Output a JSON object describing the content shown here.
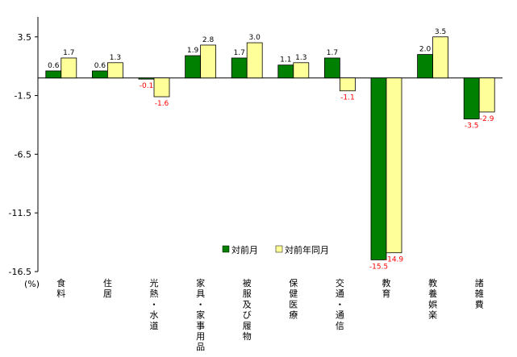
{
  "chart_data": {
    "type": "bar",
    "unit_label": "(%)",
    "categories": [
      "食料",
      "住居",
      "光熱・水道",
      "家具・家事用品",
      "被服及び履物",
      "保健医療",
      "交通・通信",
      "教育",
      "教養娯楽",
      "諸雑費"
    ],
    "series": [
      {
        "name": "対前月",
        "values": [
          0.6,
          0.6,
          -0.1,
          1.9,
          1.7,
          1.1,
          1.7,
          -15.5,
          2.0,
          -3.5
        ]
      },
      {
        "name": "対前年同月",
        "values": [
          1.7,
          1.3,
          -1.6,
          2.8,
          3.0,
          1.3,
          -1.1,
          -14.9,
          3.5,
          -2.9
        ]
      }
    ],
    "value_labels": [
      [
        "0.6",
        "0.6",
        "-0.1",
        "1.9",
        "1.7",
        "1.1",
        "1.7",
        "-15.5",
        "2.0",
        "-3.5"
      ],
      [
        "1.7",
        "1.3",
        "-1.6",
        "2.8",
        "3.0",
        "1.3",
        "-1.1",
        "-14.9",
        "3.5",
        "-2.9"
      ]
    ],
    "yticks": [
      "3.5",
      "-1.5",
      "-6.5",
      "-11.5",
      "-16.5"
    ],
    "ylim": [
      -16.5,
      5.2
    ],
    "grid": false,
    "legend": "inside-lower-center",
    "colors": {
      "series1": "#008000",
      "series2": "#ffff99",
      "negative_label": "#ff0000",
      "positive_label": "#000000"
    }
  }
}
